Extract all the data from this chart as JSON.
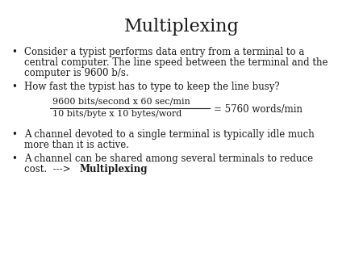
{
  "title": "Multiplexing",
  "background_color": "#ffffff",
  "title_fontsize": 16,
  "body_fontsize": 8.5,
  "bullet1_line1": "Consider a typist performs data entry from a terminal to a",
  "bullet1_line2": "central computer. The line speed between the terminal and the",
  "bullet1_line3": "computer is 9600 b/s.",
  "bullet2": "How fast the typist has to type to keep the line busy?",
  "fraction_numerator": "9600 bits/second x 60 sec/min",
  "fraction_denominator": "10 bits/byte x 10 bytes/word",
  "fraction_result": "= 5760 words/min",
  "bullet3_line1": "A channel devoted to a single terminal is typically idle much",
  "bullet3_line2": "more than it is active.",
  "bullet4_line1": "A channel can be shared among several terminals to reduce",
  "bullet4_line2_normal": "cost.  --->  ",
  "bullet4_line2_bold": "Multiplexing",
  "text_color": "#1a1a1a"
}
